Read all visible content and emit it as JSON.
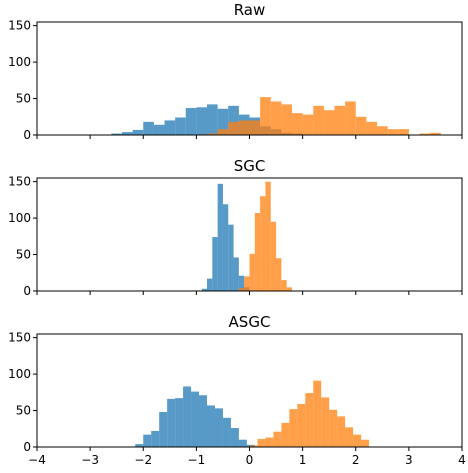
{
  "colors": {
    "series_a": "#1f77b4",
    "series_b": "#ff7f0e",
    "axis": "#000000",
    "background": "#ffffff"
  },
  "chart_data": [
    {
      "type": "bar",
      "title": "Raw",
      "xlim": [
        -4,
        4
      ],
      "ylim": [
        0,
        155
      ],
      "yticks": [
        0,
        50,
        100,
        150
      ],
      "xticks": [
        -4,
        -3,
        -2,
        -1,
        0,
        1,
        2,
        3,
        4
      ],
      "show_xtick_labels": false,
      "grid": false,
      "bin_width": 0.2,
      "series": [
        {
          "color_key": "series_a",
          "bins": [
            {
              "x": -2.6,
              "value": 2
            },
            {
              "x": -2.4,
              "value": 4
            },
            {
              "x": -2.2,
              "value": 7
            },
            {
              "x": -2.0,
              "value": 18
            },
            {
              "x": -1.8,
              "value": 14
            },
            {
              "x": -1.6,
              "value": 20
            },
            {
              "x": -1.4,
              "value": 24
            },
            {
              "x": -1.2,
              "value": 37
            },
            {
              "x": -1.0,
              "value": 38
            },
            {
              "x": -0.8,
              "value": 42
            },
            {
              "x": -0.6,
              "value": 36
            },
            {
              "x": -0.4,
              "value": 40
            },
            {
              "x": -0.2,
              "value": 28
            },
            {
              "x": 0.0,
              "value": 24
            },
            {
              "x": 0.2,
              "value": 12
            },
            {
              "x": 0.4,
              "value": 8
            },
            {
              "x": 0.6,
              "value": 3
            },
            {
              "x": 0.8,
              "value": 2
            }
          ]
        },
        {
          "color_key": "series_b",
          "bins": [
            {
              "x": -0.8,
              "value": 2
            },
            {
              "x": -0.6,
              "value": 8
            },
            {
              "x": -0.4,
              "value": 18
            },
            {
              "x": -0.2,
              "value": 20
            },
            {
              "x": 0.0,
              "value": 20
            },
            {
              "x": 0.2,
              "value": 52
            },
            {
              "x": 0.4,
              "value": 46
            },
            {
              "x": 0.6,
              "value": 42
            },
            {
              "x": 0.8,
              "value": 30
            },
            {
              "x": 1.0,
              "value": 28
            },
            {
              "x": 1.2,
              "value": 40
            },
            {
              "x": 1.4,
              "value": 34
            },
            {
              "x": 1.6,
              "value": 40
            },
            {
              "x": 1.8,
              "value": 46
            },
            {
              "x": 2.0,
              "value": 25
            },
            {
              "x": 2.2,
              "value": 18
            },
            {
              "x": 2.4,
              "value": 12
            },
            {
              "x": 2.6,
              "value": 8
            },
            {
              "x": 2.8,
              "value": 8
            },
            {
              "x": 3.2,
              "value": 2
            },
            {
              "x": 3.4,
              "value": 3
            }
          ]
        }
      ]
    },
    {
      "type": "bar",
      "title": "SGC",
      "xlim": [
        -4,
        4
      ],
      "ylim": [
        0,
        155
      ],
      "yticks": [
        0,
        50,
        100,
        150
      ],
      "xticks": [
        -4,
        -3,
        -2,
        -1,
        0,
        1,
        2,
        3,
        4
      ],
      "show_xtick_labels": false,
      "grid": false,
      "bin_width": 0.1,
      "series": [
        {
          "color_key": "series_a",
          "bins": [
            {
              "x": -0.9,
              "value": 3
            },
            {
              "x": -0.8,
              "value": 17
            },
            {
              "x": -0.7,
              "value": 74
            },
            {
              "x": -0.6,
              "value": 147
            },
            {
              "x": -0.5,
              "value": 119
            },
            {
              "x": -0.4,
              "value": 91
            },
            {
              "x": -0.3,
              "value": 46
            },
            {
              "x": -0.2,
              "value": 21
            },
            {
              "x": -0.1,
              "value": 5
            }
          ]
        },
        {
          "color_key": "series_b",
          "bins": [
            {
              "x": -0.2,
              "value": 4
            },
            {
              "x": -0.1,
              "value": 20
            },
            {
              "x": 0.0,
              "value": 51
            },
            {
              "x": 0.1,
              "value": 107
            },
            {
              "x": 0.2,
              "value": 130
            },
            {
              "x": 0.3,
              "value": 150
            },
            {
              "x": 0.4,
              "value": 95
            },
            {
              "x": 0.5,
              "value": 45
            },
            {
              "x": 0.6,
              "value": 15
            },
            {
              "x": 0.7,
              "value": 5
            }
          ]
        }
      ]
    },
    {
      "type": "bar",
      "title": "ASGC",
      "xlim": [
        -4,
        4
      ],
      "ylim": [
        0,
        155
      ],
      "yticks": [
        0,
        50,
        100,
        150
      ],
      "xticks": [
        -4,
        -3,
        -2,
        -1,
        0,
        1,
        2,
        3,
        4
      ],
      "show_xtick_labels": true,
      "grid": false,
      "bin_width": 0.15,
      "series": [
        {
          "color_key": "series_a",
          "bins": [
            {
              "x": -2.15,
              "value": 4
            },
            {
              "x": -2.0,
              "value": 17
            },
            {
              "x": -1.85,
              "value": 22
            },
            {
              "x": -1.7,
              "value": 48
            },
            {
              "x": -1.55,
              "value": 66
            },
            {
              "x": -1.4,
              "value": 67
            },
            {
              "x": -1.25,
              "value": 83
            },
            {
              "x": -1.1,
              "value": 76
            },
            {
              "x": -0.95,
              "value": 71
            },
            {
              "x": -0.8,
              "value": 57
            },
            {
              "x": -0.65,
              "value": 53
            },
            {
              "x": -0.5,
              "value": 40
            },
            {
              "x": -0.35,
              "value": 26
            },
            {
              "x": -0.2,
              "value": 10
            },
            {
              "x": -0.05,
              "value": 3
            }
          ]
        },
        {
          "color_key": "series_b",
          "bins": [
            {
              "x": 0.0,
              "value": 2
            },
            {
              "x": 0.15,
              "value": 11
            },
            {
              "x": 0.3,
              "value": 13
            },
            {
              "x": 0.45,
              "value": 21
            },
            {
              "x": 0.6,
              "value": 33
            },
            {
              "x": 0.75,
              "value": 52
            },
            {
              "x": 0.9,
              "value": 59
            },
            {
              "x": 1.05,
              "value": 74
            },
            {
              "x": 1.2,
              "value": 91
            },
            {
              "x": 1.35,
              "value": 68
            },
            {
              "x": 1.5,
              "value": 51
            },
            {
              "x": 1.65,
              "value": 42
            },
            {
              "x": 1.8,
              "value": 27
            },
            {
              "x": 1.95,
              "value": 17
            },
            {
              "x": 2.1,
              "value": 10
            }
          ]
        }
      ]
    }
  ]
}
